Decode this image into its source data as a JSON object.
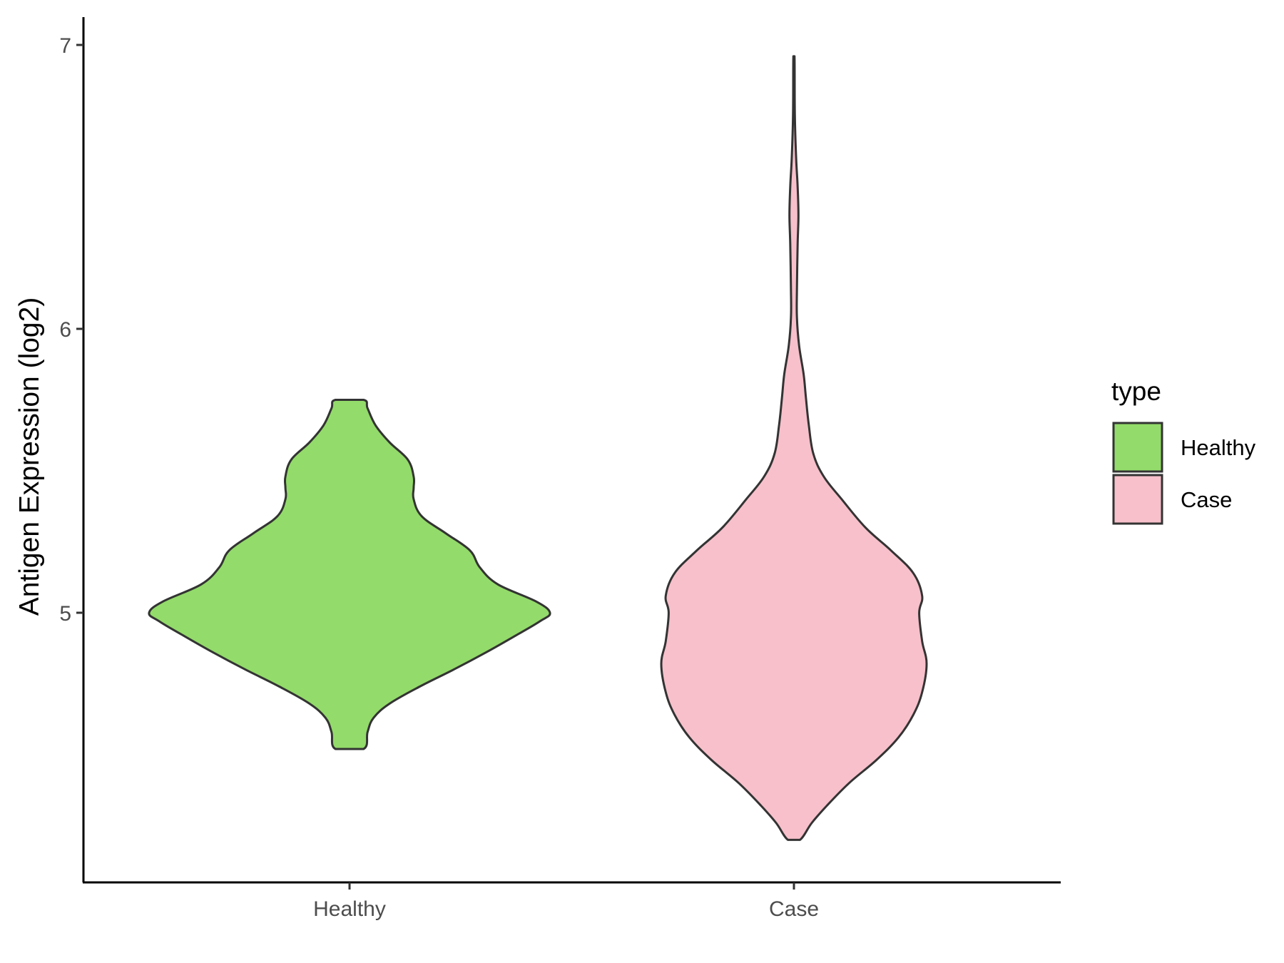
{
  "chart_data": {
    "type": "violin",
    "ylabel": "Antigen Expression (log2)",
    "xlabel": "",
    "categories": [
      "Healthy",
      "Case"
    ],
    "y_ticks": [
      "5",
      "6",
      "7"
    ],
    "ylim": [
      4.12,
      7.1
    ],
    "grid": false,
    "legend": {
      "title": "type",
      "position": "right",
      "entries": [
        {
          "label": "Healthy",
          "color": "#93DB6A"
        },
        {
          "label": "Case",
          "color": "#F7C0CB"
        }
      ]
    },
    "series": [
      {
        "category": "Healthy",
        "color": "#93DB6A",
        "min": 4.52,
        "max": 5.75,
        "profile": [
          [
            4.52,
            0.07
          ],
          [
            4.58,
            0.09
          ],
          [
            4.63,
            0.12
          ],
          [
            4.68,
            0.2
          ],
          [
            4.74,
            0.35
          ],
          [
            4.8,
            0.52
          ],
          [
            4.86,
            0.68
          ],
          [
            4.92,
            0.83
          ],
          [
            4.97,
            0.95
          ],
          [
            5.0,
            1.0
          ],
          [
            5.04,
            0.93
          ],
          [
            5.1,
            0.74
          ],
          [
            5.16,
            0.65
          ],
          [
            5.22,
            0.6
          ],
          [
            5.28,
            0.48
          ],
          [
            5.34,
            0.36
          ],
          [
            5.4,
            0.32
          ],
          [
            5.44,
            0.32
          ],
          [
            5.48,
            0.32
          ],
          [
            5.54,
            0.29
          ],
          [
            5.6,
            0.2
          ],
          [
            5.66,
            0.13
          ],
          [
            5.72,
            0.09
          ],
          [
            5.75,
            0.07
          ]
        ]
      },
      {
        "category": "Case",
        "color": "#F7C0CB",
        "min": 4.2,
        "max": 6.96,
        "profile": [
          [
            4.2,
            0.04
          ],
          [
            4.26,
            0.12
          ],
          [
            4.32,
            0.22
          ],
          [
            4.4,
            0.37
          ],
          [
            4.48,
            0.55
          ],
          [
            4.56,
            0.7
          ],
          [
            4.64,
            0.8
          ],
          [
            4.72,
            0.86
          ],
          [
            4.82,
            0.89
          ],
          [
            4.9,
            0.86
          ],
          [
            5.0,
            0.84
          ],
          [
            5.06,
            0.86
          ],
          [
            5.14,
            0.8
          ],
          [
            5.22,
            0.65
          ],
          [
            5.3,
            0.48
          ],
          [
            5.4,
            0.32
          ],
          [
            5.48,
            0.2
          ],
          [
            5.56,
            0.13
          ],
          [
            5.66,
            0.1
          ],
          [
            5.76,
            0.08
          ],
          [
            5.84,
            0.065
          ],
          [
            5.94,
            0.035
          ],
          [
            6.04,
            0.02
          ],
          [
            6.14,
            0.02
          ],
          [
            6.3,
            0.025
          ],
          [
            6.4,
            0.03
          ],
          [
            6.5,
            0.025
          ],
          [
            6.6,
            0.015
          ],
          [
            6.75,
            0.006
          ],
          [
            6.96,
            0.004
          ]
        ]
      }
    ]
  }
}
